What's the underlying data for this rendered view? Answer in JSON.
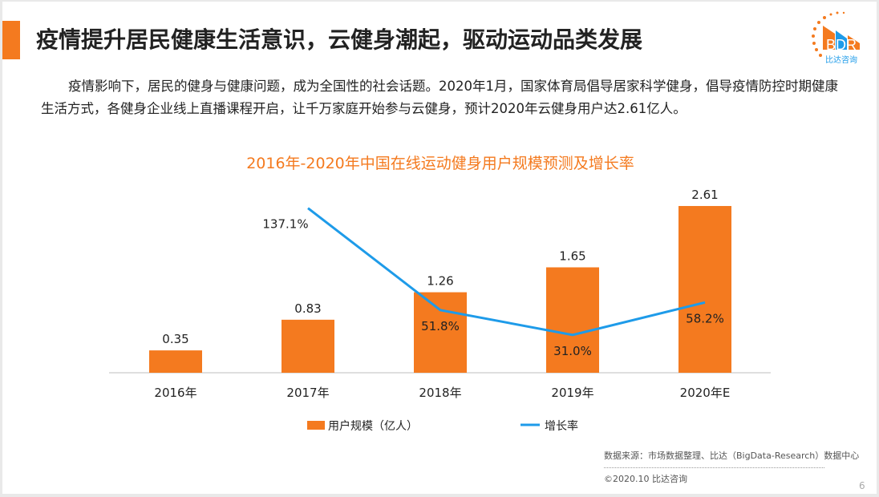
{
  "header": {
    "title": "疫情提升居民健康生活意识，云健身潮起，驱动运动品类发展",
    "logo_text": "BDR",
    "logo_subtext": "比达咨询"
  },
  "body": {
    "paragraph": "疫情影响下，居民的健身与健康问题，成为全国性的社会话题。2020年1月，国家体育局倡导居家科学健身，倡导疫情防控时期健康生活方式，各健身企业线上直播课程开启，让千万家庭开始参与云健身，预计2020年云健身用户达2.61亿人。"
  },
  "chart_data": {
    "type": "bar+line",
    "title": "2016年-2020年中国在线运动健身用户规模预测及增长率",
    "categories": [
      "2016年",
      "2017年",
      "2018年",
      "2019年",
      "2020年E"
    ],
    "series": [
      {
        "name": "用户规模（亿人）",
        "type": "bar",
        "values": [
          0.35,
          0.83,
          1.26,
          1.65,
          2.61
        ],
        "labels": [
          "0.35",
          "0.83",
          "1.26",
          "1.65",
          "2.61"
        ],
        "color": "#f47a1f"
      },
      {
        "name": "增长率",
        "type": "line",
        "values": [
          null,
          137.1,
          51.8,
          31.0,
          58.2
        ],
        "labels": [
          "",
          "137.1%",
          "51.8%",
          "31.0%",
          "58.2%"
        ],
        "color": "#1e9be9"
      }
    ],
    "legend": "bottom",
    "grid": false
  },
  "footer": {
    "source": "数据来源：市场数据整理、比达（BigData-Research）数据中心",
    "copyright": "©2020.10 比达咨询",
    "page": "6"
  }
}
